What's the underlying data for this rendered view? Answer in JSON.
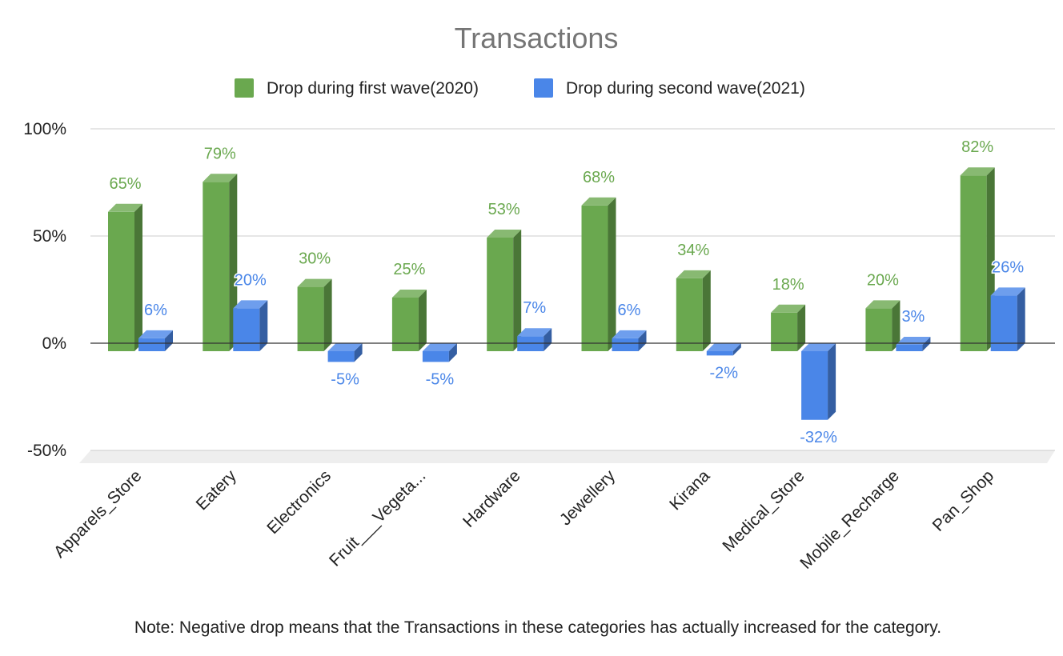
{
  "chart_data": {
    "type": "bar",
    "title": "Transactions",
    "categories": [
      "Apparels_Store",
      "Eatery",
      "Electronics",
      "Fruit___Vegeta...",
      "Hardware",
      "Jewellery",
      "Kirana",
      "Medical_Store",
      "Mobile_Recharge",
      "Pan_Shop"
    ],
    "series": [
      {
        "name": "Drop during first wave(2020)",
        "color": "#6aa84f",
        "values": [
          65,
          79,
          30,
          25,
          53,
          68,
          34,
          18,
          20,
          82
        ],
        "labels": [
          "65%",
          "79%",
          "30%",
          "25%",
          "53%",
          "68%",
          "34%",
          "18%",
          "20%",
          "82%"
        ]
      },
      {
        "name": "Drop during second wave(2021)",
        "color": "#4a86e8",
        "values": [
          6,
          20,
          -5,
          -5,
          7,
          6,
          -2,
          -32,
          3,
          26
        ],
        "labels": [
          "6%",
          "20%",
          "-5%",
          "-5%",
          "7%",
          "6%",
          "-2%",
          "-32%",
          "3%",
          "26%"
        ]
      }
    ],
    "ylim": [
      -50,
      100
    ],
    "yticks": [
      100,
      50,
      0,
      -50
    ],
    "ytick_labels": [
      "100%",
      "50%",
      "0%",
      "-50%"
    ],
    "grid": true,
    "legend_position": "top",
    "xlabel": "",
    "ylabel": "",
    "note": "Note: Negative drop means that the Transactions in these categories has actually increased for the category."
  }
}
